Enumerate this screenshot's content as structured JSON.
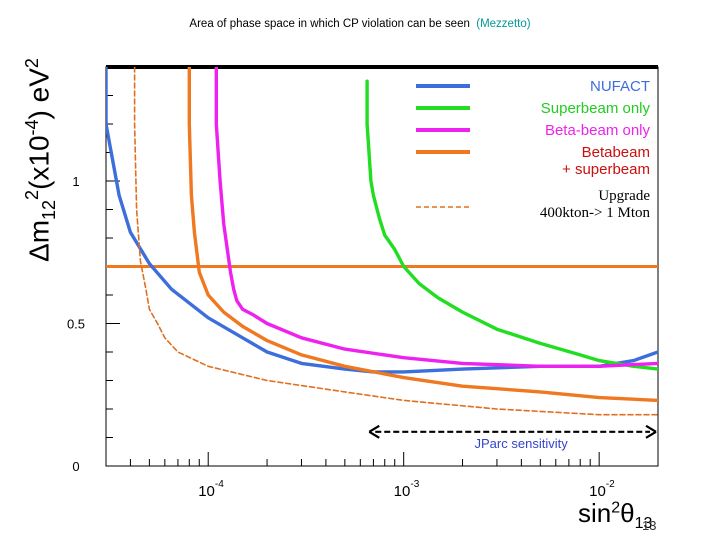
{
  "title": {
    "main": "Area of phase space in which CP violation can be seen",
    "author": "(Mezzetto)"
  },
  "page_number": "13",
  "chart_data": {
    "type": "line",
    "title": "Area of phase space in which CP violation can be seen (Mezzetto)",
    "xlabel": "sin²θ13",
    "ylabel": "Δm12²(x10⁻⁴) eV²",
    "x_scale": "log",
    "xlim": [
      3e-05,
      0.02
    ],
    "ylim": [
      0,
      1.4
    ],
    "x_ticks": [
      {
        "value": 0.0001,
        "base": "10",
        "exp": "-4"
      },
      {
        "value": 0.001,
        "base": "10",
        "exp": "-3"
      },
      {
        "value": 0.01,
        "base": "10",
        "exp": "-2"
      }
    ],
    "y_ticks": [
      {
        "value": 0,
        "label": "0"
      },
      {
        "value": 0.5,
        "label": "0.5"
      },
      {
        "value": 1,
        "label": "1"
      }
    ],
    "reference_line": {
      "y": 0.7,
      "color": "#f07820"
    },
    "annotation": {
      "text": "JParc sensitivity",
      "x_from": 0.00075,
      "x_to": 0.02,
      "y": 0.12
    },
    "series": [
      {
        "name": "NUFACT",
        "color": "#3c6edc",
        "style": "solid",
        "x": [
          3e-05,
          3e-05,
          3.5e-05,
          4e-05,
          5e-05,
          6.5e-05,
          0.0001,
          0.00015,
          0.0002,
          0.0003,
          0.0005,
          0.0007,
          0.001,
          0.002,
          0.005,
          0.01,
          0.015,
          0.02
        ],
        "y": [
          1.4,
          1.2,
          0.95,
          0.82,
          0.71,
          0.62,
          0.52,
          0.45,
          0.4,
          0.36,
          0.34,
          0.33,
          0.33,
          0.34,
          0.35,
          0.35,
          0.37,
          0.4
        ]
      },
      {
        "name": "Superbeam only",
        "color": "#22dd22",
        "style": "solid",
        "x": [
          0.00065,
          0.00065,
          0.00068,
          0.0007,
          0.00075,
          0.0008,
          0.0009,
          0.001,
          0.0012,
          0.0015,
          0.002,
          0.003,
          0.005,
          0.008,
          0.01,
          0.015,
          0.02
        ],
        "y": [
          1.35,
          1.2,
          1.0,
          0.95,
          0.87,
          0.81,
          0.76,
          0.7,
          0.64,
          0.59,
          0.54,
          0.48,
          0.43,
          0.39,
          0.37,
          0.35,
          0.34
        ]
      },
      {
        "name": "Beta-beam only",
        "color": "#ee22ee",
        "style": "solid",
        "x": [
          0.00011,
          0.00011,
          0.000115,
          0.00012,
          0.00013,
          0.000135,
          0.00014,
          0.00015,
          0.00017,
          0.0002,
          0.0003,
          0.0005,
          0.001,
          0.002,
          0.005,
          0.01,
          0.02
        ],
        "y": [
          1.4,
          1.2,
          1.0,
          0.85,
          0.68,
          0.62,
          0.58,
          0.55,
          0.53,
          0.5,
          0.45,
          0.41,
          0.38,
          0.36,
          0.35,
          0.35,
          0.36
        ]
      },
      {
        "name": "Betabeam + superbeam",
        "color": "#f07820",
        "style": "solid",
        "x": [
          8e-05,
          8e-05,
          8.2e-05,
          8.5e-05,
          9e-05,
          0.0001,
          0.00012,
          0.00015,
          0.0002,
          0.0003,
          0.0005,
          0.001,
          0.002,
          0.005,
          0.01,
          0.02
        ],
        "y": [
          1.4,
          1.2,
          0.95,
          0.82,
          0.68,
          0.6,
          0.54,
          0.49,
          0.44,
          0.39,
          0.35,
          0.31,
          0.28,
          0.26,
          0.24,
          0.23
        ]
      },
      {
        "name": "Upgrade 400kton-> 1 Mton",
        "color": "#e07020",
        "style": "dashed",
        "x": [
          4.2e-05,
          4.2e-05,
          4.3e-05,
          4.5e-05,
          4.8e-05,
          5e-05,
          5.5e-05,
          6e-05,
          7e-05,
          0.0001,
          0.0002,
          0.0005,
          0.001,
          0.003,
          0.01,
          0.02
        ],
        "y": [
          1.4,
          1.2,
          0.9,
          0.72,
          0.62,
          0.55,
          0.5,
          0.45,
          0.4,
          0.35,
          0.3,
          0.26,
          0.23,
          0.2,
          0.18,
          0.18
        ]
      }
    ],
    "legend": [
      {
        "label": "NUFACT",
        "color": "#3c6edc",
        "style": "solid"
      },
      {
        "label": "Superbeam only",
        "color": "#22dd22",
        "style": "solid"
      },
      {
        "label": "Beta-beam only",
        "color": "#ee22ee",
        "style": "solid"
      },
      {
        "label": "Betabeam",
        "label2": "+ superbeam",
        "color": "#f07820",
        "style": "solid"
      },
      {
        "label": "Upgrade",
        "label2": "400kton-> 1 Mton",
        "color": "#e07020",
        "style": "dashed"
      }
    ]
  }
}
